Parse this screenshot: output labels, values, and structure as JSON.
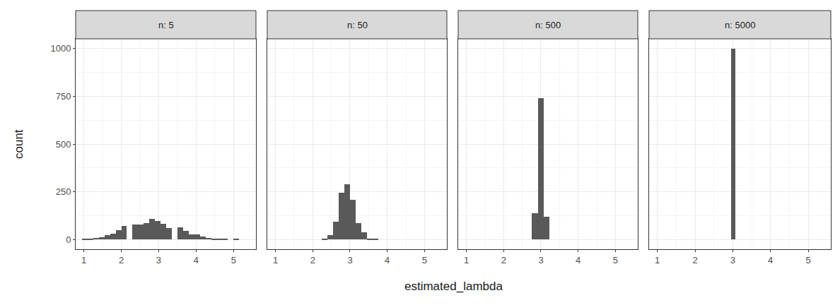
{
  "chart_data": {
    "type": "histogram",
    "x_label": "estimated_lambda",
    "y_label": "count",
    "color": "#595959",
    "grid": true,
    "xlim": [
      0.78,
      5.6
    ],
    "xticks": [
      1,
      2,
      3,
      4,
      5
    ],
    "ylim": [
      -50,
      1050
    ],
    "yticks": [
      0,
      250,
      500,
      750,
      1000
    ],
    "panels": [
      {
        "title": "n: 5",
        "bins": [
          0.95,
          1.1,
          1.25,
          1.4,
          1.55,
          1.7,
          1.85,
          2.0,
          2.15,
          2.3,
          2.45,
          2.6,
          2.75,
          2.9,
          3.05,
          3.2,
          3.35,
          3.5,
          3.65,
          3.8,
          3.95,
          4.1,
          4.25,
          4.4,
          4.55,
          4.7,
          4.85,
          5.0,
          5.15,
          5.3,
          5.45
        ],
        "counts": [
          2,
          4,
          8,
          14,
          22,
          32,
          48,
          70,
          0,
          80,
          80,
          85,
          108,
          98,
          82,
          60,
          0,
          65,
          45,
          28,
          26,
          15,
          10,
          6,
          4,
          2,
          0,
          2,
          0,
          0
        ]
      },
      {
        "title": "n: 50",
        "bins": [
          2.25,
          2.4,
          2.55,
          2.7,
          2.85,
          3.0,
          3.15,
          3.3,
          3.45,
          3.6,
          3.75
        ],
        "counts": [
          3,
          25,
          95,
          245,
          290,
          210,
          85,
          40,
          5,
          2
        ]
      },
      {
        "title": "n: 500",
        "bins": [
          2.75,
          2.92,
          3.07,
          3.23
        ],
        "counts": [
          140,
          740,
          120
        ]
      },
      {
        "title": "n: 5000",
        "bins": [
          2.95,
          3.06
        ],
        "counts": [
          1000
        ]
      }
    ]
  }
}
